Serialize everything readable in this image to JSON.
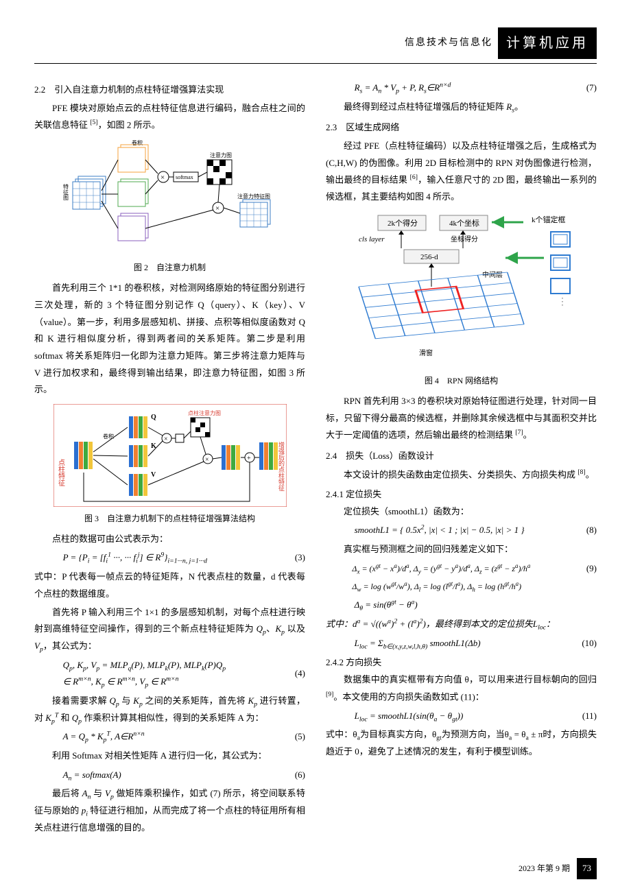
{
  "header": {
    "journal": "信息技术与信息化",
    "category": "计算机应用"
  },
  "left": {
    "s22_title": "2.2　引入自注意力机制的点柱特征增强算法实现",
    "p1": "PFE 模块对原始点云的点柱特征信息进行编码，融合点柱之间的关联信息特征 ",
    "p1_ref": "[5]",
    "p1_tail": "，如图 2 所示。",
    "fig2_caption": "图 2　自注意力机制",
    "p2": "首先利用三个 1*1 的卷积核，对检测网络原始的特征图分别进行三次处理，新的 3 个特征图分别记作 Q（query）、K（key）、V（value）。第一步，利用多层感知机、拼接、点积等相似度函数对 Q 和 K 进行相似度分析，得到两者间的关系矩阵。第二步是利用 softmax 将关系矩阵归一化即为注意力矩阵。第三步将注意力矩阵与 V 进行加权求和，最终得到输出结果，即注意力特征图，如图 3 所示。",
    "fig3_caption": "图 3　自注意力机制下的点柱特征增强算法结构",
    "p3": "点柱的数据可由公式表示为：",
    "eq3": "P = {P<sub>i</sub> = [f<sub>i</sub><sup>1</sup> ···, ··· f<sub>i</sub><sup>j</sup>] ∈ R<sup>9</sup>}<sub>i=1···n, j=1···d</sub>",
    "eq3_num": "(3)",
    "p4": "式中：P 代表每一帧点云的特征矩阵，N 代表点柱的数量，d 代表每个点柱的数据维度。",
    "p5a": "首先将 P 输入利用三个 1×1 的多层感知机制，对每个点柱进行映射到高维特征空间操作，得到的三个新点柱特征矩阵为 ",
    "p5b": "Q<sub>p</sub>",
    "p5c": "、",
    "p5d": "K<sub>p</sub>",
    "p5e": " 以及 ",
    "p5f": "V<sub>p</sub>",
    "p5g": "，其公式为：",
    "eq4_l1": "Q<sub>p</sub>, K<sub>p</sub>, V<sub>p</sub> = MLP<sub>q</sub>(P), MLP<sub>k</sub>(P), MLP<sub>k</sub>(P)Q<sub>p</sub>",
    "eq4_l2": "∈ R<sup>m×n</sup>, K<sub>p</sub> ∈ R<sup>m×n</sup>, V<sub>p</sub> ∈ R<sup>m×n</sup>",
    "eq4_num": "(4)",
    "p6a": "接着需要求解 ",
    "p6b": "Q<sub>p</sub>",
    "p6c": " 与 ",
    "p6d": "K<sub>p</sub>",
    "p6e": " 之间的关系矩阵，首先将 ",
    "p6f": "K<sub>p</sub>",
    "p6g": " 进行转置，对 ",
    "p6h": "K<sub>p</sub><sup>T</sup>",
    "p6i": " 和 ",
    "p6j": "Q<sub>p</sub>",
    "p6k": " 作乘积计算其相似性，得到的关系矩阵 A 为：",
    "eq5": "A = Q<sub>p</sub> * K<sub>p</sub><sup>T</sup>, A∈R<sup>n×n</sup>",
    "eq5_num": "(5)",
    "p7": "利用 Softmax 对相关性矩阵 A 进行归一化，其公式为：",
    "eq6": "A<sub>n</sub> = softmax(A)",
    "eq6_num": "(6)",
    "p8a": "最后将 ",
    "p8b": "A<sub>n</sub>",
    "p8c": " 与 ",
    "p8d": "V<sub>p</sub>",
    "p8e": " 做矩阵乘积操作，如式 (7) 所示，将空间联系特征与原始的 ",
    "p8f": "p<sub>i</sub>",
    "p8g": " 特征进行相加，从而完成了将一个点柱的特征用所有相关点柱进行信息增强的目的。"
  },
  "right": {
    "eq7": "R<sub>s</sub> = A<sub>n</sub> * V<sub>p</sub> + P, R<sub>s</sub>∈R<sup>n×d</sup>",
    "eq7_num": "(7)",
    "p1a": "最终得到经过点柱特征增强后的特征矩阵 ",
    "p1b": "R<sub>s</sub>",
    "p1c": "。",
    "s23_title": "2.3　区域生成网络",
    "p2": "经过 PFE（点柱特征编码）以及点柱特征增强之后，生成格式为 (C,H,W) 的伪图像。利用 2D 目标检测中的 RPN 对伪图像进行检测，输出最终的目标结果 ",
    "p2_ref": "[6]",
    "p2_tail": "，输入任意尺寸的 2D 图，最终输出一系列的候选框，其主要结构如图 4 所示。",
    "fig4_caption": "图 4　RPN 网络结构",
    "p3": "RPN 首先利用 3×3 的卷积块对原始特征图进行处理，针对同一目标，只留下得分最高的候选框，并删除其余候选框中与其面积交并比大于一定阈值的选项，然后输出最终的检测结果 ",
    "p3_ref": "[7]",
    "p3_tail": "。",
    "s24_title": "2.4　损失（Loss）函数设计",
    "p4": "本文设计的损失函数由定位损失、分类损失、方向损失构成 ",
    "p4_ref": "[8]",
    "p4_tail": "。",
    "s241_title": "2.4.1 定位损失",
    "p5": "定位损失（smoothL1）函数为：",
    "eq8": "smoothL1 = { 0.5x<sup>2</sup>, |x| &lt; 1 ; |x| − 0.5, |x| &gt; 1 }",
    "eq8_num": "(8)",
    "p6": "真实框与预测框之间的回归残差定义如下：",
    "eq9_l1": "Δ<sub>x</sub> = (x<sup>gt</sup> − x<sup>a</sup>)/d<sup>a</sup>, Δ<sub>y</sub> = (y<sup>gt</sup> − y<sup>a</sup>)/d<sup>a</sup>, Δ<sub>z</sub> = (z<sup>gt</sup> − z<sup>a</sup>)/h<sup>a</sup>",
    "eq9_num": "(9)",
    "eq9_l2": "Δ<sub>w</sub> = log (w<sup>gt</sup>/w<sup>a</sup>), Δ<sub>l</sub> = log (l<sup>gt</sup>/l<sup>a</sup>), Δ<sub>h</sub> = log (h<sup>gt</sup>/h<sup>a</sup>)",
    "eq9_l3": "Δ<sub>θ</sub> = sin(θ<sup>gt</sup> − θ<sup>a</sup>)",
    "p7": "式中：d<sup>a</sup> = √((w<sup>a</sup>)<sup>2</sup> + (l<sup>a</sup>)<sup>2</sup>)，最终得到本文的定位损失L<sub>loc</sub>：",
    "eq10": "L<sub>loc</sub> = Σ<sub>b∈(x,y,z,w,l,h,θ)</sub> smoothL1(Δb)",
    "eq10_num": "(10)",
    "s242_title": "2.4.2 方向损失",
    "p8": "数据集中的真实框带有方向值 θ，可以用来进行目标朝向的回归 ",
    "p8_ref": "[9]",
    "p8_tail": "。本文使用的方向损失函数如式 (11)：",
    "eq11": "L<sub>loc</sub> = smoothL1(sin(θ<sub>a</sub> − θ<sub>gt</sub>))",
    "eq11_num": "(11)",
    "p9": "式中：θ<sub>a</sub>为目标真实方向，θ<sub>gt</sub>为预测方向，当θ<sub>a</sub> = θ<sub>a</sub> ± π时，方向损失趋近于 0，避免了上述情况的发生，有利于模型训练。"
  },
  "fig2": {
    "blue": "#3b7cc4",
    "orange": "#f5a23b",
    "green": "#4fa84f",
    "purple": "#8a5fbd",
    "black": "#000",
    "grid": "#888",
    "labels": {
      "softmax": "softmax",
      "attn": "注意力图",
      "feat": "注意力特征图",
      "featmap": "特征图",
      "conv": "卷积"
    }
  },
  "fig3": {
    "blue": "#2b6fd1",
    "orange": "#f08030",
    "green": "#3faa3f",
    "yellow": "#f2c63a",
    "red": "#d63a2e",
    "black": "#000",
    "labels": {
      "left": "点柱特征",
      "right": "增强后的点柱特征",
      "attn": "点柱注意力图",
      "conv": "卷积"
    }
  },
  "fig4": {
    "blue": "#2e7bd1",
    "red": "#e22",
    "green_arrow": "#2ea44a",
    "gray": "#888",
    "labels": {
      "scores": "2k个得分",
      "coords": "4k个坐标",
      "anchors": "k个锚定框",
      "cls": "cls layer",
      "coord_score": "坐标得分",
      "d256": "256-d",
      "mid": "中间层",
      "slide": "滑窗"
    }
  },
  "footer": {
    "issue": "2023 年第 9 期",
    "page": "73"
  }
}
